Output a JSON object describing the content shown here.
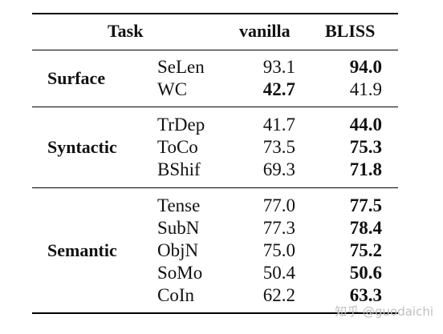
{
  "header": {
    "task": "Task",
    "vanilla": "vanilla",
    "bliss": "BLISS"
  },
  "groups": [
    {
      "label": "Surface",
      "rows": [
        {
          "task": "SeLen",
          "vanilla": "93.1",
          "bliss": "94.0",
          "best": "bliss"
        },
        {
          "task": "WC",
          "vanilla": "42.7",
          "bliss": "41.9",
          "best": "vanilla"
        }
      ]
    },
    {
      "label": "Syntactic",
      "rows": [
        {
          "task": "TrDep",
          "vanilla": "41.7",
          "bliss": "44.0",
          "best": "bliss"
        },
        {
          "task": "ToCo",
          "vanilla": "73.5",
          "bliss": "75.3",
          "best": "bliss"
        },
        {
          "task": "BShif",
          "vanilla": "69.3",
          "bliss": "71.8",
          "best": "bliss"
        }
      ]
    },
    {
      "label": "Semantic",
      "rows": [
        {
          "task": "Tense",
          "vanilla": "77.0",
          "bliss": "77.5",
          "best": "bliss"
        },
        {
          "task": "SubN",
          "vanilla": "77.3",
          "bliss": "78.4",
          "best": "bliss"
        },
        {
          "task": "ObjN",
          "vanilla": "75.0",
          "bliss": "75.2",
          "best": "bliss"
        },
        {
          "task": "SoMo",
          "vanilla": "50.4",
          "bliss": "50.6",
          "best": "bliss"
        },
        {
          "task": "CoIn",
          "vanilla": "62.2",
          "bliss": "63.3",
          "best": "bliss"
        }
      ]
    }
  ],
  "watermark": "知乎 @guodaichi"
}
